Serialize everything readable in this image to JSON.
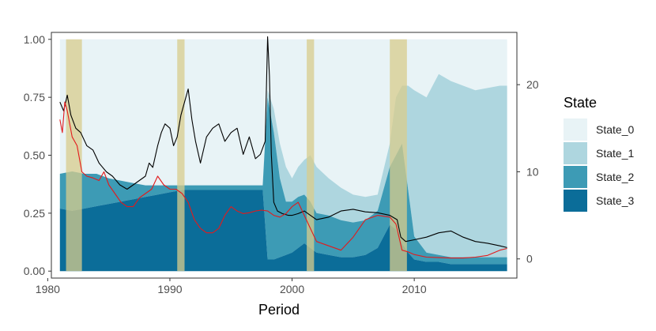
{
  "chart_data": {
    "type": "area",
    "title": "",
    "xlabel": "Period",
    "ylabel": "",
    "xlim": [
      1980.3,
      2018.4
    ],
    "ylim": [
      -0.03,
      1.03
    ],
    "ylim_right": [
      -2.2,
      26.0
    ],
    "x_ticks": [
      1980,
      1990,
      2000,
      2010
    ],
    "y_ticks": [
      0.0,
      0.25,
      0.5,
      0.75,
      1.0
    ],
    "y_tick_labels": [
      "0.00",
      "0.25",
      "0.50",
      "0.75",
      "1.00"
    ],
    "y_right_ticks": [
      0,
      10,
      20
    ],
    "grid": false,
    "legend_position": "right",
    "legend": {
      "title": "State",
      "entries": [
        {
          "name": "State_0",
          "color": "#e8f3f6"
        },
        {
          "name": "State_1",
          "color": "#aed6df"
        },
        {
          "name": "State_2",
          "color": "#3d9bb5"
        },
        {
          "name": "State_3",
          "color": "#0b6d99"
        }
      ]
    },
    "recession_bands": [
      [
        1981.5,
        1982.8
      ],
      [
        1990.6,
        1991.2
      ],
      [
        2001.2,
        2001.8
      ],
      [
        2008.0,
        2009.4
      ]
    ],
    "recession_color": "#d8cc8c",
    "state_probabilities": {
      "x": [
        1981.0,
        1982.0,
        1983.0,
        1984.0,
        1985.0,
        1986.0,
        1987.0,
        1988.0,
        1989.0,
        1990.0,
        1991.0,
        1992.0,
        1993.0,
        1994.0,
        1995.0,
        1996.0,
        1997.0,
        1997.6,
        1998.0,
        1998.5,
        1999.0,
        1999.5,
        2000.0,
        2000.5,
        2001.0,
        2001.5,
        2002.0,
        2003.0,
        2004.0,
        2005.0,
        2006.0,
        2007.0,
        2008.0,
        2008.5,
        2009.0,
        2009.5,
        2010.0,
        2011.0,
        2012.0,
        2013.0,
        2014.0,
        2015.0,
        2016.0,
        2017.0,
        2017.6
      ],
      "cumulative_state_3": [
        0.27,
        0.26,
        0.27,
        0.28,
        0.29,
        0.3,
        0.31,
        0.32,
        0.33,
        0.34,
        0.35,
        0.35,
        0.35,
        0.35,
        0.35,
        0.35,
        0.35,
        0.35,
        0.05,
        0.05,
        0.06,
        0.07,
        0.08,
        0.1,
        0.12,
        0.1,
        0.08,
        0.07,
        0.06,
        0.06,
        0.07,
        0.1,
        0.2,
        0.18,
        0.12,
        0.08,
        0.05,
        0.04,
        0.04,
        0.03,
        0.03,
        0.03,
        0.03,
        0.03,
        0.03
      ],
      "cumulative_state_2": [
        0.42,
        0.43,
        0.42,
        0.42,
        0.4,
        0.39,
        0.38,
        0.37,
        0.37,
        0.37,
        0.37,
        0.37,
        0.37,
        0.37,
        0.37,
        0.37,
        0.37,
        0.37,
        0.75,
        0.6,
        0.4,
        0.3,
        0.3,
        0.32,
        0.33,
        0.3,
        0.25,
        0.24,
        0.22,
        0.21,
        0.22,
        0.26,
        0.45,
        0.5,
        0.55,
        0.35,
        0.15,
        0.08,
        0.07,
        0.06,
        0.06,
        0.06,
        0.06,
        0.06,
        0.06
      ],
      "cumulative_state_1": [
        0.42,
        0.43,
        0.42,
        0.42,
        0.4,
        0.39,
        0.38,
        0.37,
        0.37,
        0.37,
        0.37,
        0.37,
        0.37,
        0.37,
        0.37,
        0.37,
        0.37,
        0.37,
        0.78,
        0.7,
        0.55,
        0.45,
        0.4,
        0.45,
        0.48,
        0.5,
        0.45,
        0.4,
        0.36,
        0.33,
        0.32,
        0.33,
        0.55,
        0.75,
        0.8,
        0.8,
        0.78,
        0.75,
        0.85,
        0.82,
        0.8,
        0.78,
        0.79,
        0.8,
        0.8
      ]
    },
    "series": [
      {
        "color": "#000000",
        "axis": "right",
        "x": [
          1981.0,
          1981.3,
          1981.6,
          1981.9,
          1982.3,
          1982.7,
          1983.2,
          1983.7,
          1984.2,
          1984.8,
          1985.3,
          1985.9,
          1986.5,
          1987.0,
          1987.5,
          1988.0,
          1988.3,
          1988.6,
          1989.0,
          1989.3,
          1989.6,
          1990.0,
          1990.3,
          1990.6,
          1990.9,
          1991.2,
          1991.5,
          1991.8,
          1992.1,
          1992.5,
          1993.0,
          1993.5,
          1994.0,
          1994.5,
          1995.0,
          1995.5,
          1996.0,
          1996.5,
          1997.0,
          1997.4,
          1997.8,
          1998.0,
          1998.15,
          1998.3,
          1998.5,
          1998.8,
          1999.2,
          1999.7,
          2000.0,
          2000.5,
          2001.0,
          2001.5,
          2002.0,
          2003.0,
          2004.0,
          2005.0,
          2006.0,
          2007.0,
          2008.0,
          2008.6,
          2008.9,
          2009.3,
          2010.0,
          2011.0,
          2012.0,
          2013.0,
          2014.0,
          2015.0,
          2016.0,
          2017.0,
          2017.6
        ],
        "values": [
          18.0,
          17.0,
          18.8,
          16.5,
          15.0,
          14.5,
          13.0,
          12.5,
          11.0,
          10.0,
          9.5,
          8.5,
          8.0,
          8.5,
          9.0,
          9.5,
          11.0,
          10.5,
          13.0,
          14.5,
          15.5,
          15.0,
          13.0,
          14.0,
          16.5,
          18.0,
          19.5,
          16.0,
          13.5,
          11.0,
          14.0,
          15.0,
          15.5,
          13.5,
          14.5,
          15.0,
          12.0,
          14.0,
          11.5,
          12.0,
          13.5,
          25.5,
          21.0,
          12.0,
          6.5,
          5.5,
          5.2,
          5.0,
          5.0,
          5.2,
          5.5,
          5.0,
          4.5,
          4.8,
          5.5,
          5.7,
          5.4,
          5.3,
          5.0,
          4.5,
          2.5,
          2.0,
          2.2,
          2.5,
          3.0,
          3.2,
          2.5,
          2.0,
          1.8,
          1.5,
          1.3
        ]
      },
      {
        "color": "#e31a1c",
        "axis": "right",
        "x": [
          1981.0,
          1981.2,
          1981.4,
          1981.6,
          1982.0,
          1982.4,
          1982.8,
          1983.2,
          1983.7,
          1984.2,
          1984.6,
          1985.0,
          1985.5,
          1986.0,
          1986.5,
          1987.0,
          1987.5,
          1988.0,
          1988.5,
          1989.0,
          1989.5,
          1990.0,
          1990.5,
          1991.0,
          1991.5,
          1992.0,
          1992.5,
          1993.0,
          1993.5,
          1994.0,
          1994.5,
          1995.0,
          1995.5,
          1996.0,
          1996.5,
          1997.0,
          1997.5,
          1998.0,
          1998.5,
          1999.0,
          1999.5,
          2000.0,
          2000.5,
          2001.0,
          2001.5,
          2002.0,
          2003.0,
          2004.0,
          2005.0,
          2006.0,
          2007.0,
          2008.0,
          2008.5,
          2009.0,
          2009.5,
          2010.0,
          2011.0,
          2012.0,
          2013.0,
          2014.0,
          2015.0,
          2016.0,
          2017.0,
          2017.6
        ],
        "values": [
          16.0,
          14.5,
          18.0,
          17.0,
          14.0,
          13.0,
          10.0,
          9.5,
          9.3,
          9.0,
          10.0,
          8.5,
          7.5,
          6.5,
          6.0,
          6.0,
          7.0,
          7.5,
          8.0,
          9.5,
          8.5,
          8.0,
          8.0,
          7.5,
          6.5,
          4.5,
          3.5,
          3.0,
          3.0,
          3.5,
          5.0,
          6.0,
          5.5,
          5.2,
          5.3,
          5.5,
          5.6,
          5.5,
          5.0,
          4.8,
          5.2,
          6.0,
          6.5,
          5.0,
          3.5,
          2.0,
          1.5,
          1.0,
          2.5,
          4.5,
          5.0,
          4.8,
          4.0,
          1.0,
          0.8,
          0.5,
          0.2,
          0.15,
          0.1,
          0.1,
          0.2,
          0.4,
          1.0,
          1.2
        ]
      }
    ]
  }
}
